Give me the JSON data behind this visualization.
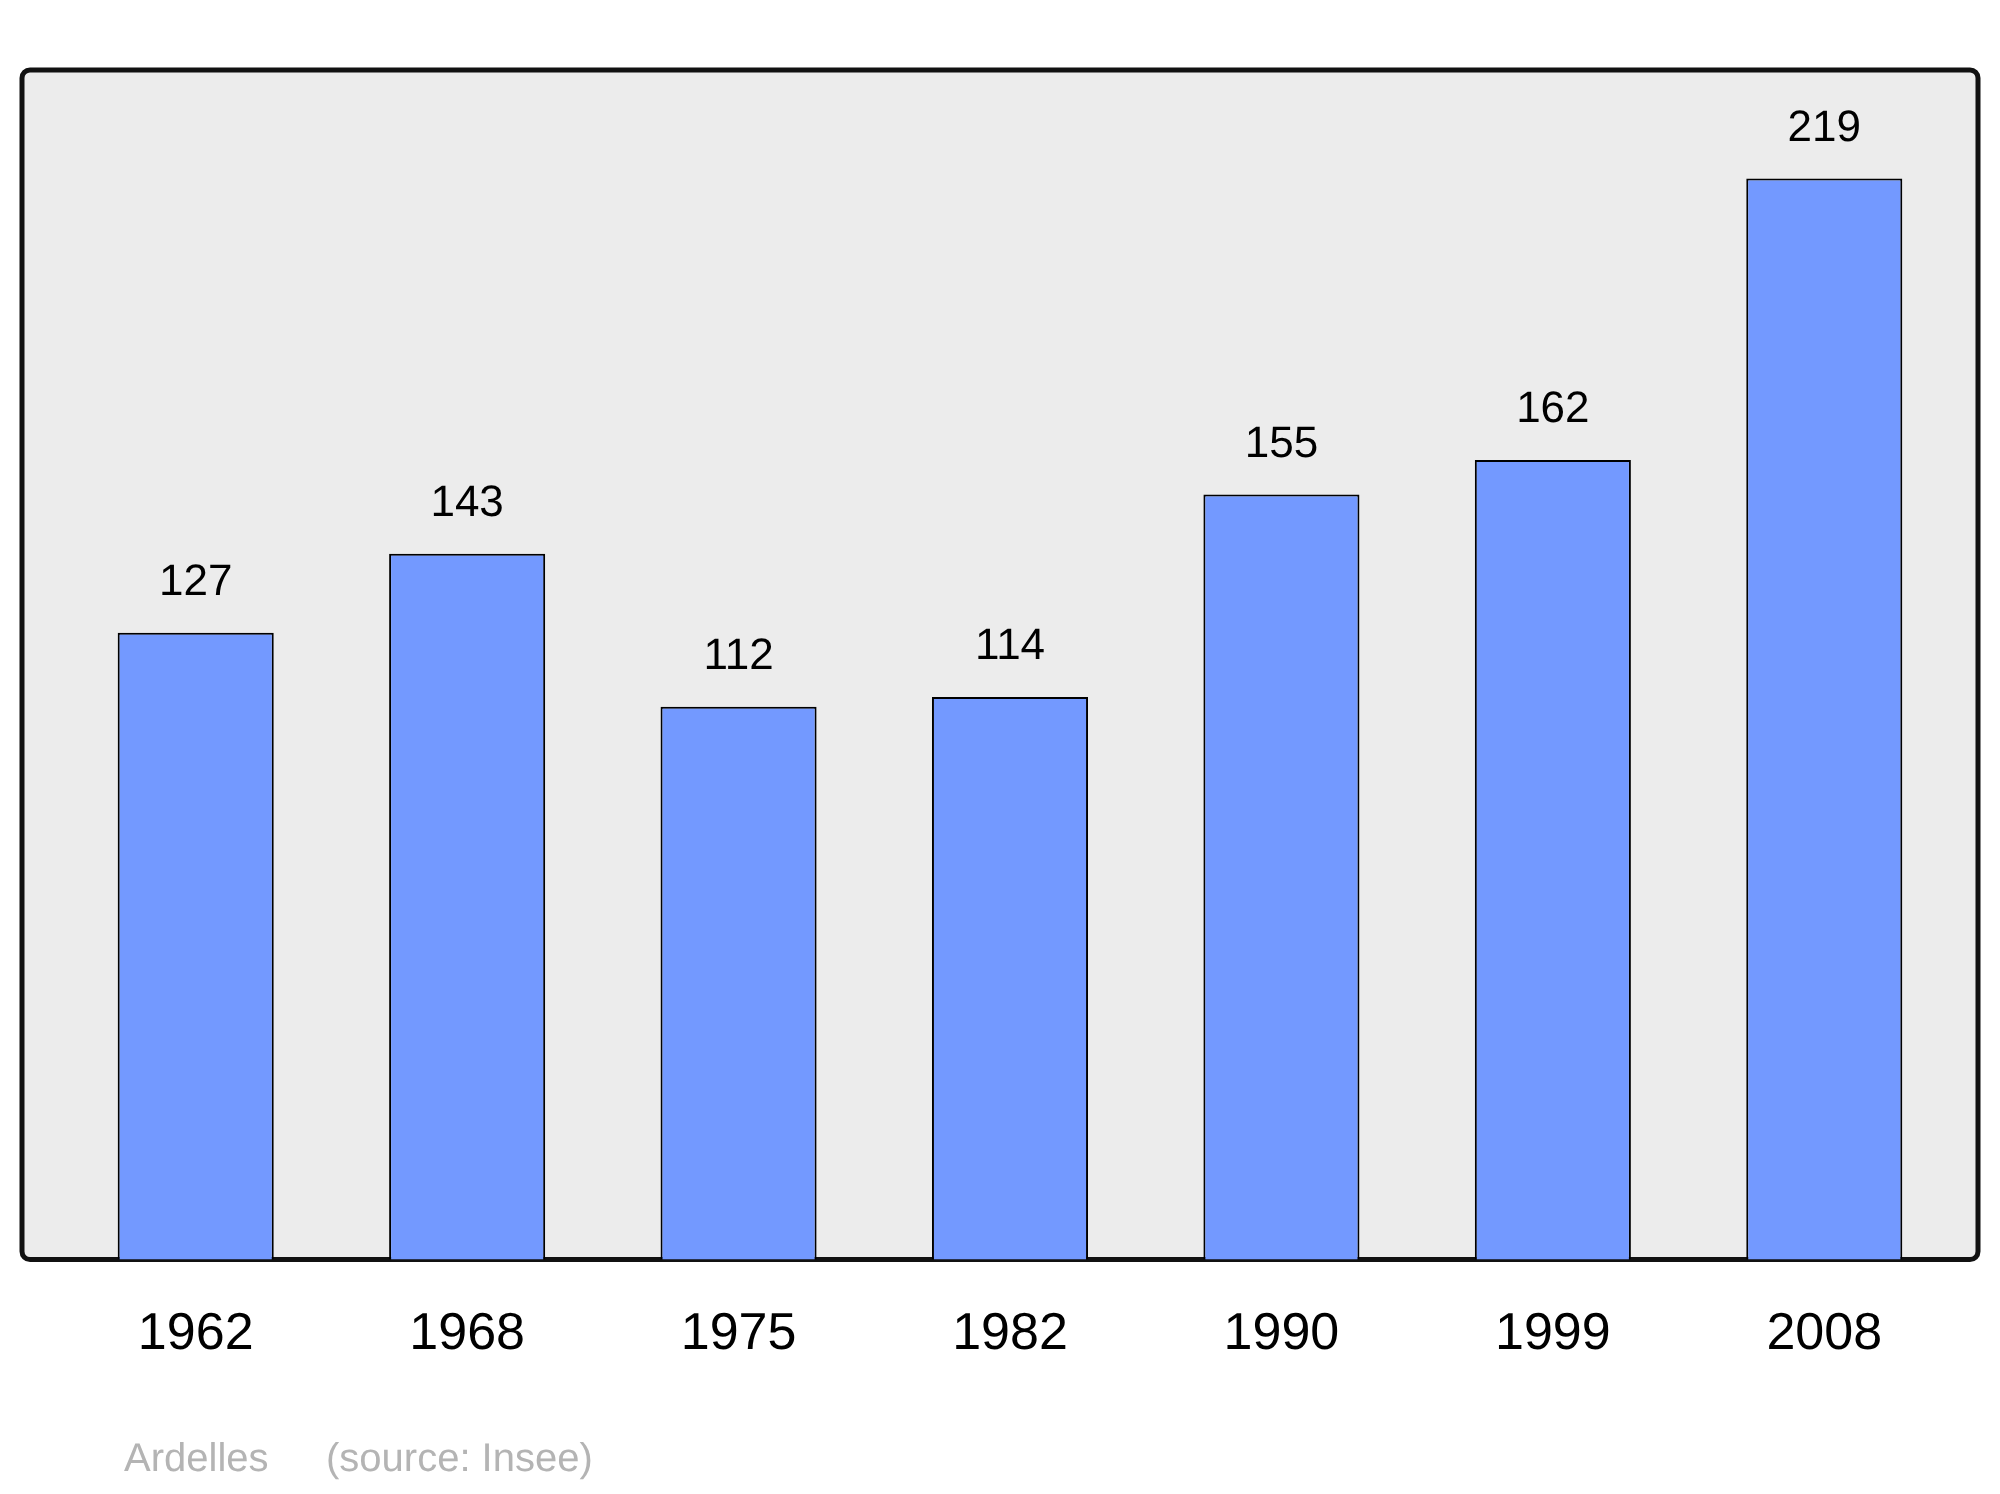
{
  "chart_data": {
    "type": "bar",
    "categories": [
      "1962",
      "1968",
      "1975",
      "1982",
      "1990",
      "1999",
      "2008"
    ],
    "values": [
      127,
      143,
      112,
      114,
      155,
      162,
      219
    ],
    "color": "#7399ff",
    "ylim": [
      0,
      241
    ],
    "data_labels": true,
    "grid": false,
    "legend": false,
    "annotations": [
      "Ardelles",
      "(source: Insee)"
    ]
  }
}
